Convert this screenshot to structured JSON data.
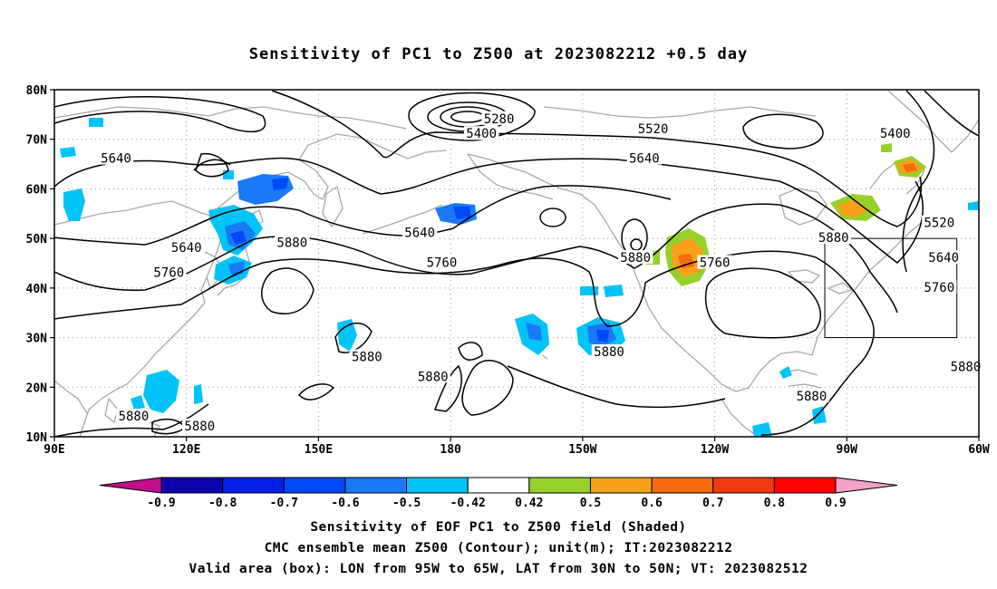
{
  "title": "Sensitivity of PC1 to Z500 at 2023082212 +0.5 day",
  "map": {
    "projection": "cylindrical-equidistant",
    "lon_range": [
      90,
      300
    ],
    "lat_range": [
      10,
      80
    ],
    "lat_ticks": [
      "10N",
      "20N",
      "30N",
      "40N",
      "50N",
      "60N",
      "70N",
      "80N"
    ],
    "lon_ticks": [
      "90E",
      "120E",
      "150E",
      "180",
      "150W",
      "120W",
      "90W",
      "60W"
    ],
    "contour_labels": [
      {
        "text": "5280",
        "lon": 191,
        "lat": 74
      },
      {
        "text": "5400",
        "lon": 187,
        "lat": 71
      },
      {
        "text": "5520",
        "lon": 226,
        "lat": 72
      },
      {
        "text": "5400",
        "lon": 281,
        "lat": 71
      },
      {
        "text": "5640",
        "lon": 104,
        "lat": 66
      },
      {
        "text": "5640",
        "lon": 224,
        "lat": 66
      },
      {
        "text": "5520",
        "lon": 291,
        "lat": 53
      },
      {
        "text": "5640",
        "lon": 173,
        "lat": 51
      },
      {
        "text": "5640",
        "lon": 120,
        "lat": 48
      },
      {
        "text": "5880",
        "lon": 144,
        "lat": 49
      },
      {
        "text": "5880",
        "lon": 222,
        "lat": 46
      },
      {
        "text": "5880",
        "lon": 267,
        "lat": 50
      },
      {
        "text": "5640",
        "lon": 292,
        "lat": 46
      },
      {
        "text": "5760",
        "lon": 116,
        "lat": 43
      },
      {
        "text": "5760",
        "lon": 178,
        "lat": 45
      },
      {
        "text": "5760",
        "lon": 240,
        "lat": 45
      },
      {
        "text": "5760",
        "lon": 291,
        "lat": 40
      },
      {
        "text": "5880",
        "lon": 161,
        "lat": 26
      },
      {
        "text": "5880",
        "lon": 216,
        "lat": 27
      },
      {
        "text": "5880",
        "lon": 297,
        "lat": 24
      },
      {
        "text": "5880",
        "lon": 176,
        "lat": 22
      },
      {
        "text": "5880",
        "lon": 262,
        "lat": 18
      },
      {
        "text": "5880",
        "lon": 108,
        "lat": 14
      },
      {
        "text": "5880",
        "lon": 123,
        "lat": 12
      }
    ],
    "valid_box": {
      "lon_min": 265,
      "lon_max": 295,
      "lat_min": 30,
      "lat_max": 50
    },
    "contour_levels": [
      5280,
      5400,
      5520,
      5640,
      5760,
      5880
    ],
    "contour_color": "#000000",
    "coast_color": "#a8a8a8"
  },
  "colorbar": {
    "labels": [
      "-0.9",
      "-0.8",
      "-0.7",
      "-0.6",
      "-0.5",
      "-0.42",
      "0.42",
      "0.5",
      "0.6",
      "0.7",
      "0.8",
      "0.9"
    ],
    "colors": [
      "#0e00aa",
      "#0020e8",
      "#0048f8",
      "#1a7af6",
      "#00c4f8",
      "#ffffff",
      "#96d02a",
      "#f7a11b",
      "#f46b0e",
      "#f23a10",
      "#ff0000"
    ],
    "under_color": "#c0108c",
    "over_color": "#f5a0c8"
  },
  "captions": {
    "line1": "Sensitivity of EOF PC1 to Z500 field (Shaded)",
    "line2": "CMC ensemble mean Z500 (Contour); unit(m); IT:2023082212",
    "line3": "Valid area (box): LON from 95W to 65W, LAT from 30N to 50N; VT: 2023082512"
  }
}
